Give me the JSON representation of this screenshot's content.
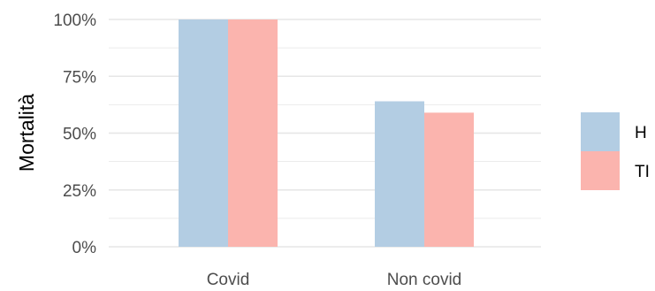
{
  "chart_data": {
    "type": "bar",
    "categories": [
      "Covid",
      "Non covid"
    ],
    "series": [
      {
        "name": "H",
        "values": [
          100,
          64
        ],
        "color": "#b3cde3"
      },
      {
        "name": "TI",
        "values": [
          100,
          59
        ],
        "color": "#fbb4ae"
      }
    ],
    "ylabel": "Mortalità",
    "xlabel": "",
    "ylim": [
      0,
      100
    ],
    "yticks": [
      "0%",
      "25%",
      "50%",
      "75%",
      "100%"
    ],
    "ytick_values": [
      0,
      25,
      50,
      75,
      100
    ],
    "grid": true,
    "legend": "right",
    "legend_labels": [
      "H",
      "TI"
    ],
    "colors": {
      "grid": "#e6e6e6",
      "tick": "#4d4d4d",
      "background": "#ffffff"
    }
  }
}
